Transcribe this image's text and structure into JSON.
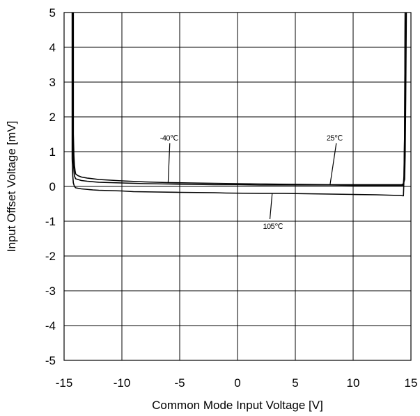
{
  "chart_data": {
    "type": "line",
    "xlabel": "Common Mode Input Voltage [V]",
    "ylabel": "Input Offset Voltage [mV]",
    "xlim": [
      -15,
      15
    ],
    "ylim": [
      -5,
      5
    ],
    "xticks": [
      -15,
      -10,
      -5,
      0,
      5,
      10,
      15
    ],
    "xtick_labels": [
      "-15",
      "-10",
      "-5",
      "0",
      "5",
      "10",
      "15"
    ],
    "yticks": [
      -5,
      -4,
      -3,
      -2,
      -1,
      0,
      1,
      2,
      3,
      4,
      5
    ],
    "ytick_labels": [
      "-5",
      "-4",
      "-3",
      "-2",
      "-1",
      "0",
      "1",
      "2",
      "3",
      "4",
      "5"
    ],
    "grid": true,
    "series": [
      {
        "name": "-40℃",
        "x": [
          -14.2,
          -14.2,
          -14.15,
          -14.1,
          -14.05,
          -14.0,
          -13.8,
          -13.5,
          -13.0,
          -12.0,
          -11.0,
          -10.0,
          -8.0,
          -6.0,
          -4.0,
          -2.0,
          0.0,
          2.0,
          5.0,
          8.0,
          10.0,
          12.0,
          13.5,
          14.2,
          14.35,
          14.4,
          14.45,
          14.5
        ],
        "y": [
          5.0,
          1.5,
          0.9,
          0.6,
          0.45,
          0.36,
          0.31,
          0.27,
          0.24,
          0.2,
          0.18,
          0.16,
          0.13,
          0.11,
          0.1,
          0.09,
          0.08,
          0.07,
          0.06,
          0.05,
          0.05,
          0.05,
          0.05,
          0.05,
          0.08,
          0.3,
          1.5,
          5.0
        ]
      },
      {
        "name": "25℃",
        "x": [
          -14.25,
          -14.25,
          -14.2,
          -14.15,
          -14.1,
          -14.0,
          -13.5,
          -13.0,
          -12.0,
          -10.0,
          -8.0,
          -6.0,
          -4.0,
          -2.0,
          0.0,
          2.0,
          5.0,
          8.0,
          10.0,
          12.0,
          14.0,
          14.3,
          14.45,
          14.5,
          14.55,
          14.6
        ],
        "y": [
          5.0,
          1.2,
          0.7,
          0.45,
          0.3,
          0.22,
          0.17,
          0.15,
          0.12,
          0.1,
          0.08,
          0.07,
          0.06,
          0.05,
          0.05,
          0.04,
          0.04,
          0.04,
          0.03,
          0.03,
          0.03,
          0.03,
          0.2,
          0.9,
          2.5,
          5.0
        ]
      },
      {
        "name": "105℃",
        "x": [
          -14.3,
          -14.3,
          -14.25,
          -14.2,
          -14.1,
          -14.0,
          -13.5,
          -12.5,
          -12.0,
          -10.0,
          -9.0,
          -7.0,
          -5.0,
          -2.0,
          -1.0,
          2.0,
          4.0,
          6.0,
          8.0,
          10.0,
          12.0,
          13.0,
          14.0,
          14.35,
          14.4,
          14.45,
          14.5
        ],
        "y": [
          5.0,
          0.8,
          0.3,
          0.1,
          0.0,
          -0.04,
          -0.07,
          -0.1,
          -0.11,
          -0.13,
          -0.15,
          -0.16,
          -0.17,
          -0.18,
          -0.19,
          -0.2,
          -0.2,
          -0.21,
          -0.22,
          -0.23,
          -0.24,
          -0.25,
          -0.26,
          -0.27,
          0.2,
          1.5,
          5.0
        ]
      }
    ],
    "annotations": [
      {
        "text": "-40℃",
        "x": -6.7,
        "y": 1.32,
        "point_x": -6.0,
        "point_y": 0.11
      },
      {
        "text": "25℃",
        "x": 7.7,
        "y": 1.32,
        "point_x": 8.0,
        "point_y": 0.04
      },
      {
        "text": "105℃",
        "x": 2.2,
        "y": -1.22,
        "point_x": 3.0,
        "point_y": -0.2
      }
    ]
  }
}
